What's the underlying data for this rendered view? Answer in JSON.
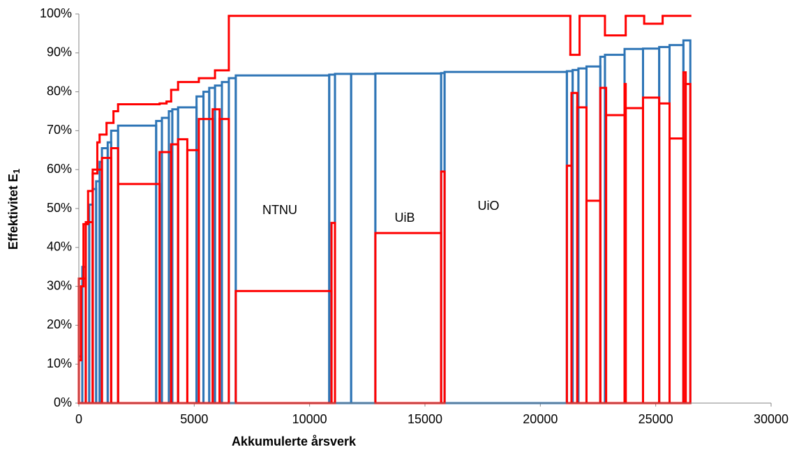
{
  "chart_data": {
    "type": "salter",
    "x_label": "Akkumulerte årsverk",
    "y_label": "Effektivitet E",
    "y_label_subscript": "1",
    "annotations": [
      "NTNU",
      "UiB",
      "UiO"
    ],
    "xlim": [
      0,
      30000
    ],
    "xticks": [
      0,
      5000,
      10000,
      15000,
      20000,
      25000,
      30000
    ],
    "ylim": [
      0,
      100
    ],
    "yticks": [
      {
        "value": 0,
        "label": "0%"
      },
      {
        "value": 10,
        "label": "10%"
      },
      {
        "value": 20,
        "label": "20%"
      },
      {
        "value": 30,
        "label": "30%"
      },
      {
        "value": 40,
        "label": "40%"
      },
      {
        "value": 50,
        "label": "50%"
      },
      {
        "value": 60,
        "label": "60%"
      },
      {
        "value": 70,
        "label": "70%"
      },
      {
        "value": 80,
        "label": "80%"
      },
      {
        "value": 90,
        "label": "90%"
      },
      {
        "value": 100,
        "label": "100%"
      }
    ],
    "grid": false,
    "series": [
      {
        "type": "bar",
        "color": "#2e75b6",
        "bins": [
          0,
          150,
          300,
          450,
          600,
          750,
          900,
          1000,
          1250,
          1400,
          1700,
          3350,
          3600,
          3900,
          4050,
          4300,
          5100,
          5400,
          5650,
          5900,
          6200,
          6500,
          6800,
          10850,
          11100,
          11800,
          12850,
          15700,
          15850,
          21150,
          21400,
          21650,
          22000,
          22600,
          22800,
          23650,
          24450,
          25150,
          25600,
          26200,
          26500
        ],
        "values": [
          12,
          35,
          46,
          51,
          55,
          57,
          62,
          65.5,
          67,
          70,
          71.3,
          72.5,
          73.3,
          75,
          75.5,
          76,
          78.8,
          80,
          81,
          81.6,
          82.5,
          83.5,
          84.2,
          84.4,
          84.6,
          84.6,
          84.7,
          84.8,
          85.1,
          85.3,
          85.6,
          86,
          86.5,
          89,
          89.5,
          91,
          91.1,
          91.5,
          92,
          93.2
        ]
      },
      {
        "type": "bar",
        "color": "#ff0000",
        "bins": [
          0,
          300,
          600,
          1000,
          1400,
          1700,
          3500,
          4000,
          4300,
          4700,
          5200,
          5800,
          6100,
          6500,
          6800,
          10950,
          11100,
          12850,
          15700,
          15850,
          21150,
          21350,
          21600,
          22000,
          22600,
          22850,
          23650,
          23700,
          24450,
          25150,
          25600,
          26200,
          26300,
          26500
        ],
        "values": [
          32,
          46.5,
          60,
          63,
          65.5,
          56.3,
          64.5,
          66.5,
          67.8,
          65,
          73,
          75.5,
          73,
          0,
          28.8,
          46.3,
          0,
          43.7,
          59.5,
          0,
          61,
          79.7,
          76,
          52,
          81,
          74,
          82,
          75.8,
          78.5,
          77,
          68,
          85,
          82
        ]
      },
      {
        "type": "step",
        "color": "#ff0000",
        "bins": [
          0,
          100,
          200,
          400,
          600,
          800,
          900,
          1200,
          1500,
          1700,
          3500,
          3800,
          4000,
          4300,
          5200,
          5900,
          6500,
          21300,
          21700,
          22800,
          23700,
          24500,
          25300,
          26500
        ],
        "values": [
          11,
          30,
          46,
          54.5,
          59,
          67,
          69,
          72,
          75,
          76.8,
          77,
          77.5,
          80.5,
          82.5,
          83.5,
          85.5,
          99.5,
          89.5,
          99.5,
          94.5,
          99.5,
          97.5,
          99.5
        ]
      }
    ]
  }
}
